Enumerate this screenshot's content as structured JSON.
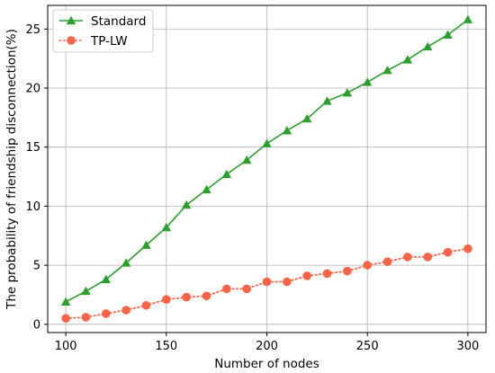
{
  "chart_data": {
    "type": "line",
    "xlabel": "Number of nodes",
    "ylabel": "The probability of friendship disconnection(%)",
    "xlim": [
      91,
      309
    ],
    "ylim": [
      -0.7,
      27
    ],
    "x_ticks": [
      100,
      150,
      200,
      250,
      300
    ],
    "y_ticks": [
      0,
      5,
      10,
      15,
      20,
      25
    ],
    "grid": true,
    "legend_position": "top-left",
    "x": [
      100,
      110,
      120,
      130,
      140,
      150,
      160,
      170,
      180,
      190,
      200,
      210,
      220,
      230,
      240,
      250,
      260,
      270,
      280,
      290,
      300
    ],
    "series": [
      {
        "name": "Standard",
        "color": "#2ca02c",
        "marker": "triangle-up",
        "line_style": "solid",
        "values": [
          1.9,
          2.8,
          3.8,
          5.2,
          6.7,
          8.2,
          10.1,
          11.4,
          12.7,
          13.9,
          15.3,
          16.4,
          17.4,
          18.9,
          19.6,
          20.5,
          21.5,
          22.4,
          23.5,
          24.5,
          25.8
        ]
      },
      {
        "name": "TP-LW",
        "color": "#ff6347",
        "marker": "circle",
        "line_style": "dotted",
        "values": [
          0.5,
          0.6,
          0.9,
          1.2,
          1.6,
          2.1,
          2.3,
          2.4,
          3.0,
          3.0,
          3.6,
          3.6,
          4.1,
          4.3,
          4.5,
          5.0,
          5.3,
          5.7,
          5.7,
          6.1,
          6.4
        ]
      }
    ]
  }
}
